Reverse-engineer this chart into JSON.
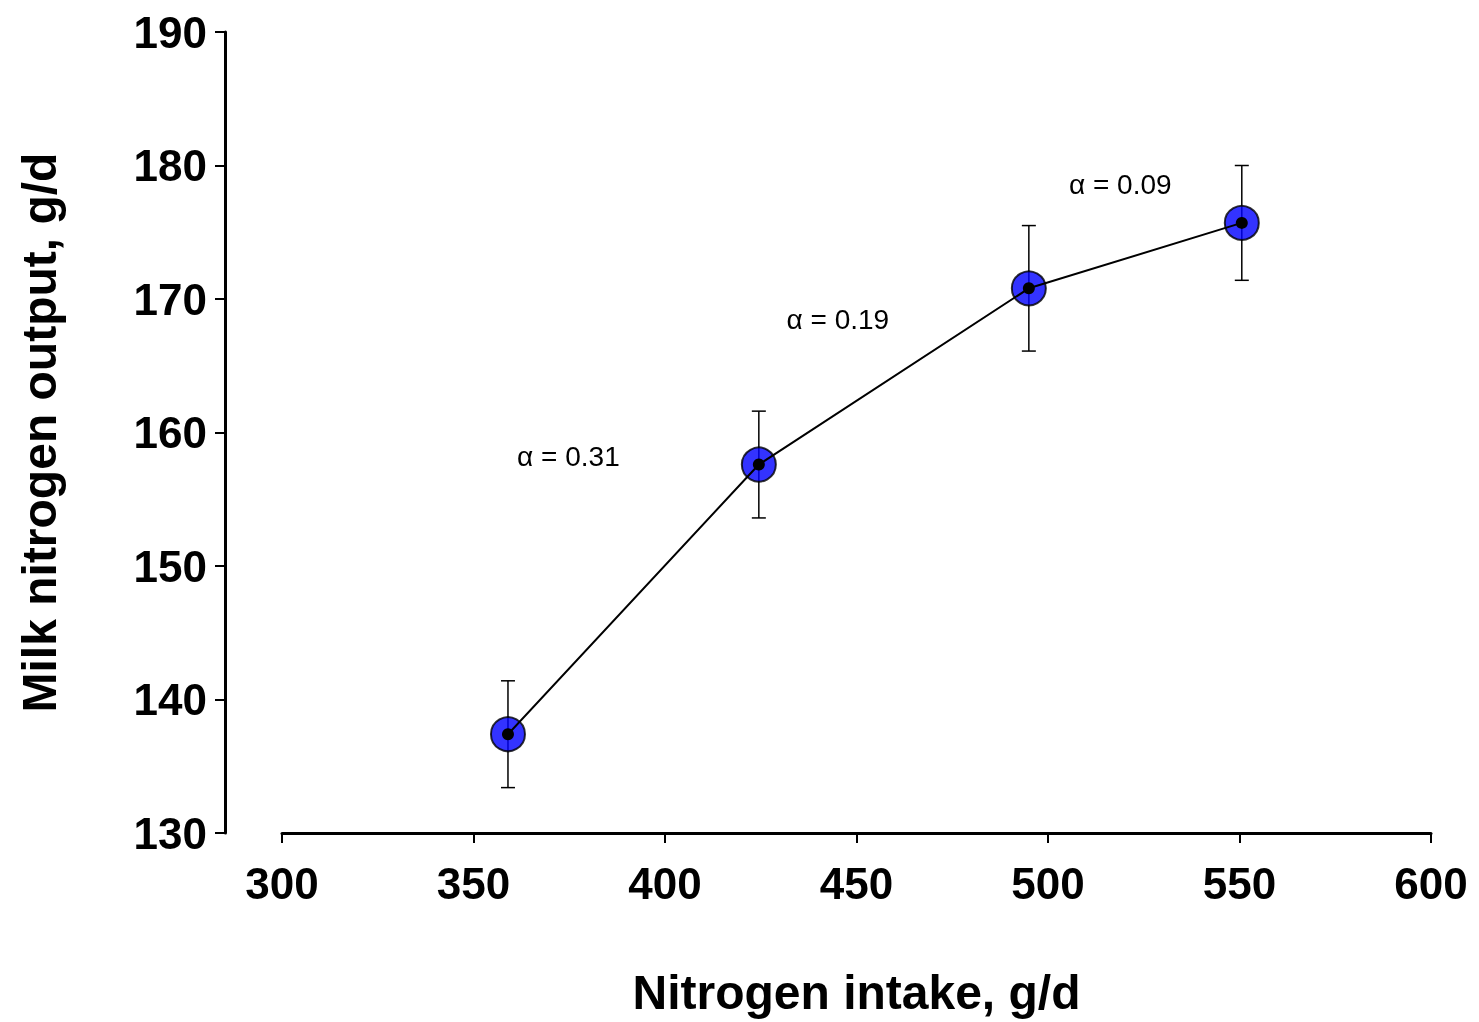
{
  "chart_data": {
    "type": "line",
    "xlabel": "Nitrogen intake, g/d",
    "ylabel": "Milk nitrogen output, g/d",
    "xlim": [
      300,
      600
    ],
    "xticks": [
      300,
      350,
      400,
      450,
      500,
      550,
      600
    ],
    "ylim": [
      130,
      190
    ],
    "yticks": [
      130,
      140,
      150,
      160,
      170,
      180,
      190
    ],
    "grid": false,
    "marker": "circle",
    "line_style": "solid",
    "series": [
      {
        "color": "#0000ff",
        "x": [
          359,
          424.5,
          495,
          550.6
        ],
        "values": [
          137.4,
          157.6,
          170.8,
          175.7
        ],
        "errors": [
          4,
          4,
          4.7,
          4.3
        ]
      }
    ],
    "annotations": [
      "α = 0.31",
      "α = 0.19",
      "α = 0.09"
    ]
  }
}
